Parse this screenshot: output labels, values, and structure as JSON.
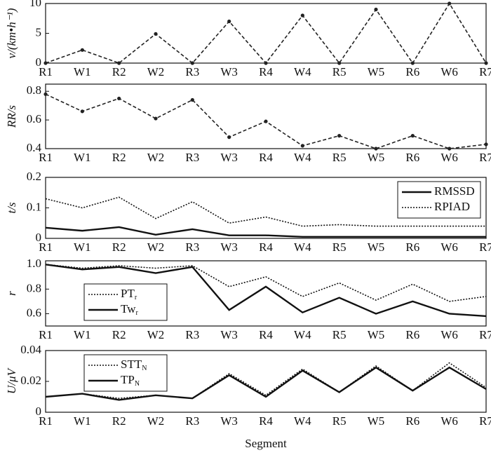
{
  "chart_data": [
    {
      "type": "line",
      "ylabel": "v/(km•h⁻¹)",
      "categories": [
        "R1",
        "W1",
        "R2",
        "W2",
        "R3",
        "W3",
        "R4",
        "W4",
        "R5",
        "W5",
        "R6",
        "W6",
        "R7"
      ],
      "series": [
        {
          "name": null,
          "color": "#222222",
          "style": "dashed",
          "marker": true,
          "values": [
            0,
            2.2,
            0,
            4.9,
            0,
            7,
            0,
            8,
            0,
            9,
            0,
            10,
            0
          ]
        }
      ],
      "ylim": [
        0,
        10
      ],
      "yticks": [
        0,
        5,
        10
      ]
    },
    {
      "type": "line",
      "ylabel": "RR/s",
      "categories": [
        "R1",
        "W1",
        "R2",
        "W2",
        "R3",
        "W3",
        "R4",
        "W4",
        "R5",
        "W5",
        "R6",
        "W6",
        "R7"
      ],
      "series": [
        {
          "name": null,
          "color": "#222222",
          "style": "dashed",
          "marker": true,
          "values": [
            0.78,
            0.66,
            0.75,
            0.61,
            0.74,
            0.48,
            0.59,
            0.42,
            0.49,
            0.4,
            0.49,
            0.4,
            0.43
          ]
        }
      ],
      "ylim": [
        0.4,
        0.85
      ],
      "yticks": [
        0.4,
        0.6,
        0.8
      ]
    },
    {
      "type": "line",
      "ylabel": "t/s",
      "categories": [
        "R1",
        "W1",
        "R2",
        "W2",
        "R3",
        "W3",
        "R4",
        "W4",
        "R5",
        "W5",
        "R6",
        "W6",
        "R7"
      ],
      "series": [
        {
          "name": "RMSSD",
          "color": "#111111",
          "style": "solid",
          "values": [
            0.035,
            0.025,
            0.037,
            0.012,
            0.03,
            0.01,
            0.01,
            0.005,
            0.005,
            0.005,
            0.005,
            0.005,
            0.005
          ]
        },
        {
          "name": "RPIAD",
          "color": "#111111",
          "style": "dotted",
          "values": [
            0.13,
            0.1,
            0.135,
            0.065,
            0.12,
            0.05,
            0.07,
            0.04,
            0.045,
            0.04,
            0.04,
            0.04,
            0.04
          ]
        }
      ],
      "ylim": [
        0,
        0.2
      ],
      "yticks": [
        0,
        0.1,
        0.2
      ],
      "legend": "upper right"
    },
    {
      "type": "line",
      "ylabel": "r",
      "categories": [
        "R1",
        "W1",
        "R2",
        "W2",
        "R3",
        "W3",
        "R4",
        "W4",
        "R5",
        "W5",
        "R6",
        "W6",
        "R7"
      ],
      "series": [
        {
          "name": "PT",
          "sub": "r",
          "color": "#111111",
          "style": "dotted",
          "values": [
            1.0,
            0.97,
            0.99,
            0.97,
            0.99,
            0.82,
            0.9,
            0.74,
            0.85,
            0.71,
            0.84,
            0.7,
            0.74
          ]
        },
        {
          "name": "Tw",
          "sub": "r",
          "color": "#111111",
          "style": "solid",
          "values": [
            1.0,
            0.96,
            0.98,
            0.93,
            0.98,
            0.63,
            0.82,
            0.61,
            0.73,
            0.6,
            0.7,
            0.6,
            0.58
          ]
        }
      ],
      "ylim": [
        0.5,
        1.03
      ],
      "yticks": [
        0.6,
        0.8,
        {
          "value": 1,
          "label": "1.0"
        }
      ],
      "legend": "lower left"
    },
    {
      "type": "line",
      "ylabel": "U/μV",
      "xlabel": "Segment",
      "categories": [
        "R1",
        "W1",
        "R2",
        "W2",
        "R3",
        "W3",
        "R4",
        "W4",
        "R5",
        "W5",
        "R6",
        "W6",
        "R7"
      ],
      "series": [
        {
          "name": "STT",
          "sub": "N",
          "color": "#111111",
          "style": "dotted",
          "values": [
            0.01,
            0.012,
            0.009,
            0.011,
            0.009,
            0.025,
            0.011,
            0.028,
            0.013,
            0.03,
            0.014,
            0.032,
            0.016
          ]
        },
        {
          "name": "TP",
          "sub": "N",
          "color": "#111111",
          "style": "solid",
          "values": [
            0.01,
            0.012,
            0.008,
            0.011,
            0.009,
            0.024,
            0.01,
            0.027,
            0.013,
            0.029,
            0.014,
            0.029,
            0.015
          ]
        }
      ],
      "ylim": [
        0,
        0.04
      ],
      "yticks": [
        0,
        0.02,
        0.04
      ],
      "legend": "upper left"
    }
  ]
}
